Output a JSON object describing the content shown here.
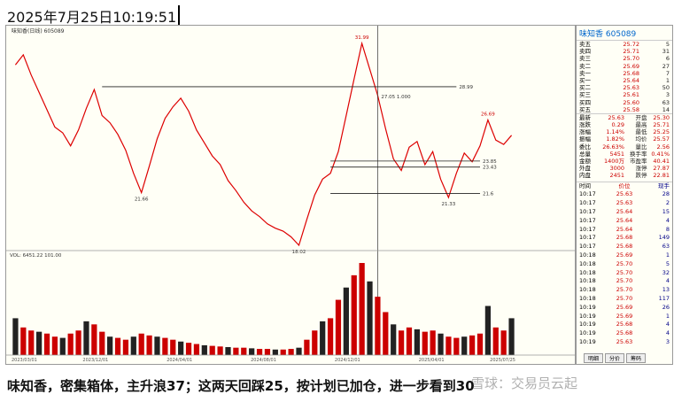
{
  "header": {
    "timestamp": "2025年7月25日10:19:51"
  },
  "chart": {
    "legend": "味知香(日线) 605089",
    "price": [
      30.5,
      31.2,
      29.8,
      28.6,
      27.4,
      26.2,
      25.8,
      24.9,
      26.0,
      27.5,
      28.8,
      27.0,
      26.5,
      25.7,
      24.6,
      23.0,
      21.66,
      23.5,
      25.4,
      26.8,
      27.6,
      28.2,
      27.3,
      26.0,
      25.1,
      24.2,
      23.6,
      22.5,
      21.8,
      21.0,
      20.4,
      20.0,
      19.5,
      19.2,
      19.0,
      18.6,
      18.02,
      19.8,
      21.5,
      22.6,
      23.0,
      24.5,
      27.0,
      29.5,
      31.99,
      30.2,
      28.4,
      26.1,
      24.0,
      23.2,
      24.8,
      25.2,
      23.6,
      24.5,
      22.6,
      21.33,
      23.0,
      24.4,
      23.8,
      24.9,
      26.69,
      25.3,
      25.0,
      25.63
    ],
    "volume": [
      60,
      45,
      40,
      38,
      35,
      30,
      28,
      35,
      40,
      55,
      50,
      38,
      30,
      28,
      25,
      30,
      35,
      32,
      30,
      28,
      25,
      22,
      20,
      18,
      16,
      15,
      14,
      13,
      12,
      12,
      11,
      10,
      10,
      9,
      9,
      10,
      12,
      25,
      40,
      55,
      60,
      90,
      110,
      130,
      150,
      120,
      95,
      70,
      50,
      40,
      45,
      42,
      38,
      40,
      35,
      30,
      28,
      30,
      32,
      35,
      80,
      45,
      40,
      60
    ],
    "volume_label": "VOL: 6451.22  101.00",
    "levels": [
      28.99,
      23.85,
      23.43,
      21.6
    ],
    "point_labels": [
      21.66,
      18.02,
      31.99,
      21.33,
      26.69
    ],
    "crosshair_label": "27.05 1.000",
    "dates": [
      "2023/03/01",
      "2023/12/01",
      "2024/04/01",
      "2024/08/01",
      "2024/12/01",
      "2025/04/01",
      "2025/07/25"
    ]
  },
  "quote": {
    "name": "味知香",
    "code": "605089",
    "book": [
      [
        "卖五",
        "25.72",
        "5"
      ],
      [
        "卖四",
        "25.71",
        "31"
      ],
      [
        "卖三",
        "25.70",
        "6"
      ],
      [
        "卖二",
        "25.69",
        "27"
      ],
      [
        "卖一",
        "25.68",
        "7"
      ],
      [
        "买一",
        "25.64",
        "1"
      ],
      [
        "买二",
        "25.63",
        "50"
      ],
      [
        "买三",
        "25.61",
        "3"
      ],
      [
        "买四",
        "25.60",
        "63"
      ],
      [
        "买五",
        "25.58",
        "14"
      ]
    ],
    "stats": [
      [
        "最新",
        "25.63",
        "开盘",
        "25.30"
      ],
      [
        "涨跌",
        "0.29",
        "最高",
        "25.71"
      ],
      [
        "涨幅",
        "1.14%",
        "最低",
        "25.25"
      ],
      [
        "振幅",
        "1.82%",
        "均价",
        "25.57"
      ],
      [
        "委比",
        "26.63%",
        "量比",
        "2.56"
      ],
      [
        "总量",
        "5451",
        "换手率",
        "0.41%"
      ],
      [
        "金额",
        "1400万",
        "市盈率",
        "40.41"
      ],
      [
        "外盘",
        "3000",
        "涨停",
        "27.87"
      ],
      [
        "内盘",
        "2451",
        "跌停",
        "22.81"
      ]
    ],
    "trade_header": [
      "时间",
      "价位",
      "现手"
    ],
    "trades": [
      [
        "10:17",
        "25.63",
        "28"
      ],
      [
        "10:17",
        "25.63",
        "2"
      ],
      [
        "10:17",
        "25.64",
        "15"
      ],
      [
        "10:17",
        "25.64",
        "4"
      ],
      [
        "10:17",
        "25.64",
        "8"
      ],
      [
        "10:17",
        "25.68",
        "149"
      ],
      [
        "10:17",
        "25.68",
        "63"
      ],
      [
        "10:18",
        "25.69",
        "1"
      ],
      [
        "10:18",
        "25.70",
        "5"
      ],
      [
        "10:18",
        "25.70",
        "32"
      ],
      [
        "10:18",
        "25.70",
        "4"
      ],
      [
        "10:18",
        "25.70",
        "13"
      ],
      [
        "10:18",
        "25.70",
        "117"
      ],
      [
        "10:19",
        "25.69",
        "26"
      ],
      [
        "10:19",
        "25.69",
        "1"
      ],
      [
        "10:19",
        "25.68",
        "4"
      ],
      [
        "10:19",
        "25.68",
        "4"
      ],
      [
        "10:19",
        "25.63",
        "3"
      ]
    ],
    "tabs": [
      "明细",
      "分价",
      "筹码"
    ]
  },
  "caption": "味知香，密集箱体，主升浪37；这两天回踩25，按计划已加仓，进一步看到30",
  "watermark": "雪球：交易员云起"
}
